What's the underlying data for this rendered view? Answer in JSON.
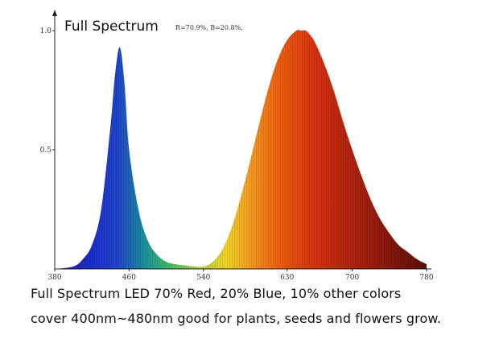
{
  "chart_data": {
    "type": "area",
    "title": "Full Spectrum",
    "annotation": "R=70.9%, B=20.8%,",
    "xlabel": "",
    "ylabel": "",
    "xlim": [
      380,
      780
    ],
    "ylim": [
      0,
      1.0
    ],
    "x_ticks": [
      380,
      460,
      540,
      630,
      700,
      780
    ],
    "y_ticks": [
      {
        "value": 0.5,
        "label": "0.5"
      },
      {
        "value": 1.0,
        "label": "1.0"
      }
    ],
    "series": [
      {
        "x": [
          380,
          400,
          410,
          420,
          430,
          440,
          445,
          450,
          455,
          460,
          470,
          480,
          490,
          500,
          510,
          520,
          530,
          540,
          550,
          560,
          570,
          580,
          590,
          600,
          610,
          620,
          630,
          640,
          645,
          650,
          655,
          660,
          670,
          680,
          690,
          700,
          710,
          720,
          730,
          740,
          750,
          760,
          770,
          780
        ],
        "values": [
          0.0,
          0.01,
          0.04,
          0.1,
          0.25,
          0.6,
          0.82,
          0.93,
          0.78,
          0.5,
          0.25,
          0.12,
          0.06,
          0.03,
          0.02,
          0.015,
          0.01,
          0.01,
          0.03,
          0.08,
          0.17,
          0.3,
          0.45,
          0.61,
          0.76,
          0.88,
          0.96,
          1.0,
          1.0,
          1.0,
          0.98,
          0.95,
          0.86,
          0.75,
          0.62,
          0.5,
          0.39,
          0.29,
          0.21,
          0.15,
          0.1,
          0.07,
          0.04,
          0.02
        ]
      }
    ],
    "grid": false,
    "legend": "none"
  },
  "caption": {
    "line1": "Full Spectrum LED 70% Red, 20% Blue, 10% other colors",
    "line2": "cover 400nm~480nm good for plants, seeds and flowers grow."
  }
}
